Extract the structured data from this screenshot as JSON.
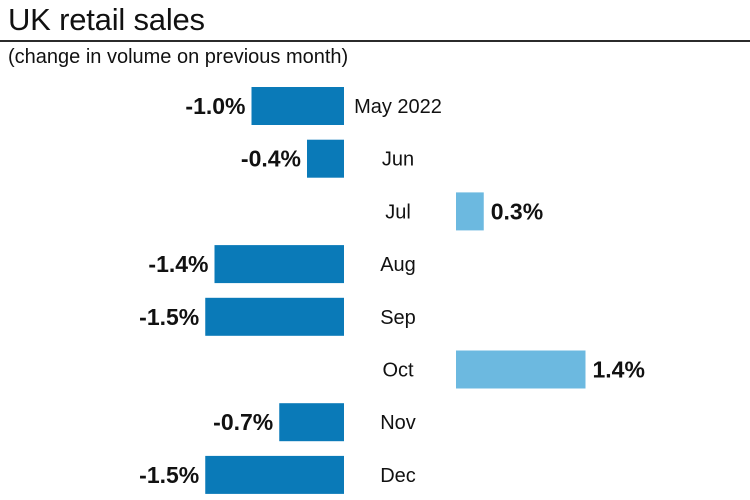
{
  "title": "UK retail sales",
  "subtitle": "(change in volume on previous month)",
  "colors": {
    "negative": "#0a7ab8",
    "positive": "#6cb9e0",
    "text": "#111111"
  },
  "chart_data": {
    "type": "bar",
    "orientation": "horizontal",
    "title": "UK retail sales",
    "subtitle": "(change in volume on previous month)",
    "categories": [
      "May 2022",
      "Jun",
      "Jul",
      "Aug",
      "Sep",
      "Oct",
      "Nov",
      "Dec"
    ],
    "values": [
      -1.0,
      -0.4,
      0.3,
      -1.4,
      -1.5,
      1.4,
      -0.7,
      -1.5
    ],
    "value_labels": [
      "-1.0%",
      "-0.4%",
      "0.3%",
      "-1.4%",
      "-1.5%",
      "1.4%",
      "-0.7%",
      "-1.5%"
    ],
    "unit": "%",
    "grid": false,
    "legend": "none"
  }
}
